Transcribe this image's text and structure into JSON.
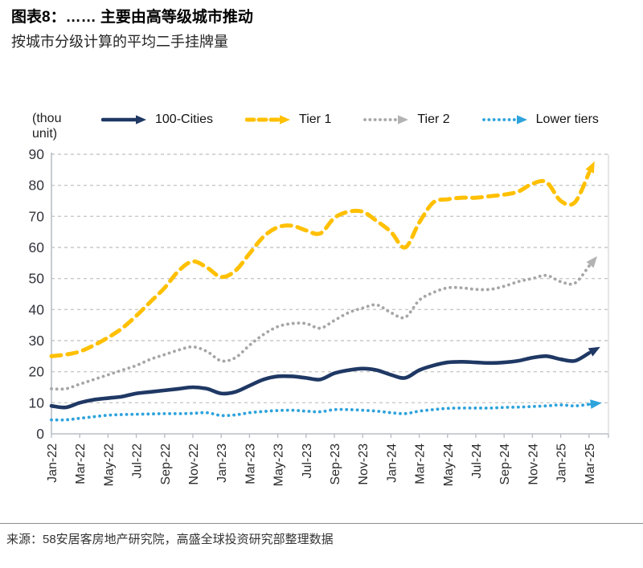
{
  "header": {
    "title": "图表8：…… 主要由高等级城市推动",
    "subtitle": "按城市分级计算的平均二手挂牌量"
  },
  "footer": {
    "source": "来源：58安居客房地产研究院，高盛全球投资研究部整理数据"
  },
  "chart_data": {
    "type": "line",
    "unit_label": "(thou unit)",
    "ylim": [
      0,
      90
    ],
    "ytick_step": 10,
    "grid": "horizontal-dashed",
    "legend_position": "top",
    "grid_color": "#c9c9c9",
    "axis_color": "#b9bec7",
    "label_color": "#33343d",
    "x_months": [
      "Jan-22",
      "Feb-22",
      "Mar-22",
      "Apr-22",
      "May-22",
      "Jun-22",
      "Jul-22",
      "Aug-22",
      "Sep-22",
      "Oct-22",
      "Nov-22",
      "Dec-22",
      "Jan-23",
      "Feb-23",
      "Mar-23",
      "Apr-23",
      "May-23",
      "Jun-23",
      "Jul-23",
      "Aug-23",
      "Sep-23",
      "Oct-23",
      "Nov-23",
      "Dec-23",
      "Jan-24",
      "Feb-24",
      "Mar-24",
      "Apr-24",
      "May-24",
      "Jun-24",
      "Jul-24",
      "Aug-24",
      "Sep-24",
      "Oct-24",
      "Nov-24",
      "Dec-24",
      "Jan-25",
      "Feb-25",
      "Mar-25"
    ],
    "xtick_labels": [
      "Jan-22",
      "Mar-22",
      "May-22",
      "Jul-22",
      "Sep-22",
      "Nov-22",
      "Jan-23",
      "Mar-23",
      "May-23",
      "Jul-23",
      "Sep-23",
      "Nov-23",
      "Jan-24",
      "Mar-24",
      "May-24",
      "Jul-24",
      "Sep-24",
      "Nov-24",
      "Jan-25",
      "Mar-25"
    ],
    "series": [
      {
        "name": "Tier 2",
        "color": "#a6a6a6",
        "arrow_color": "#b3b3b3",
        "style": "dotted",
        "values": [
          14.5,
          14.5,
          16,
          17.5,
          19,
          20.5,
          22,
          24,
          25.5,
          27,
          28,
          26.5,
          23.5,
          24.5,
          28.5,
          32,
          34.5,
          35.5,
          35.5,
          34,
          36.5,
          39,
          40.5,
          41.5,
          39,
          37.5,
          43,
          45.5,
          47,
          47,
          46.5,
          46.5,
          47.5,
          49,
          50,
          51,
          49,
          48.5,
          54
        ]
      },
      {
        "name": "Tier 1",
        "color": "#ffc000",
        "arrow_color": "#ffc000",
        "style": "dashed",
        "values": [
          25,
          25.5,
          26.5,
          28.5,
          31,
          34,
          38,
          42.5,
          47,
          52.5,
          55.5,
          53.5,
          50.5,
          52.5,
          58,
          63.5,
          66.5,
          67,
          65.5,
          64.5,
          69.5,
          71.5,
          71.5,
          68.5,
          65,
          60,
          68,
          74.5,
          75.5,
          76,
          76,
          76.5,
          77,
          78,
          80.5,
          81,
          75,
          74.5,
          84
        ]
      },
      {
        "name": "Lower tiers",
        "color": "#2ea3dc",
        "arrow_color": "#2ea3dc",
        "style": "dotted",
        "values": [
          4.5,
          4.5,
          5,
          5.5,
          6,
          6.2,
          6.3,
          6.4,
          6.5,
          6.5,
          6.6,
          6.8,
          5.9,
          6.1,
          6.8,
          7.2,
          7.5,
          7.6,
          7.3,
          7.1,
          7.8,
          7.8,
          7.6,
          7.3,
          6.8,
          6.5,
          7.3,
          7.8,
          8.2,
          8.3,
          8.3,
          8.3,
          8.5,
          8.6,
          8.8,
          9,
          9.3,
          9,
          9.5
        ]
      },
      {
        "name": "100-Cities",
        "color": "#1f3864",
        "arrow_color": "#1f3864",
        "style": "solid",
        "values": [
          9,
          8.5,
          10,
          11,
          11.5,
          12,
          13,
          13.5,
          14,
          14.5,
          15,
          14.5,
          13,
          13.5,
          15.5,
          17.5,
          18.5,
          18.5,
          18,
          17.5,
          19.5,
          20.5,
          21,
          20.5,
          19,
          18,
          20.5,
          22,
          23,
          23.2,
          23,
          22.8,
          23,
          23.5,
          24.5,
          25,
          24,
          23.5,
          26
        ]
      }
    ],
    "legend_order": [
      "100-Cities",
      "Tier 1",
      "Tier 2",
      "Lower tiers"
    ]
  }
}
